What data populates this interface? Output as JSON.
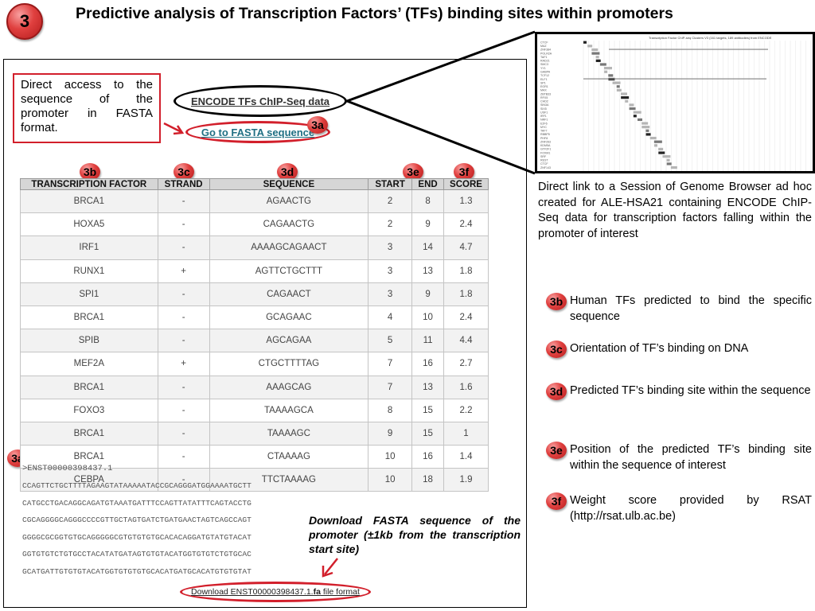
{
  "slide": {
    "number": "3",
    "title": "Predictive analysis of Transcription Factors’ (TFs) binding sites within promoters"
  },
  "direct_access_note": "Direct access to the sequence of the promoter in FASTA format.",
  "encode_link": "ENCODE TFs ChIP-Seq data",
  "fasta_link": "Go to FASTA sequence",
  "badges": {
    "a": "3a",
    "b": "3b",
    "c": "3c",
    "d": "3d",
    "e": "3e",
    "f": "3f"
  },
  "table": {
    "headers": [
      "TRANSCRIPTION FACTOR",
      "STRAND",
      "SEQUENCE",
      "START",
      "END",
      "SCORE"
    ],
    "rows": [
      [
        "BRCA1",
        "-",
        "AGAACTG",
        "2",
        "8",
        "1.3"
      ],
      [
        "HOXA5",
        "-",
        "CAGAACTG",
        "2",
        "9",
        "2.4"
      ],
      [
        "IRF1",
        "-",
        "AAAAGCAGAACT",
        "3",
        "14",
        "4.7"
      ],
      [
        "RUNX1",
        "+",
        "AGTTCTGCTTT",
        "3",
        "13",
        "1.8"
      ],
      [
        "SPI1",
        "-",
        "CAGAACT",
        "3",
        "9",
        "1.8"
      ],
      [
        "BRCA1",
        "-",
        "GCAGAAC",
        "4",
        "10",
        "2.4"
      ],
      [
        "SPIB",
        "-",
        "AGCAGAA",
        "5",
        "11",
        "4.4"
      ],
      [
        "MEF2A",
        "+",
        "CTGCTTTTAG",
        "7",
        "16",
        "2.7"
      ],
      [
        "BRCA1",
        "-",
        "AAAGCAG",
        "7",
        "13",
        "1.6"
      ],
      [
        "FOXO3",
        "-",
        "TAAAAGCA",
        "8",
        "15",
        "2.2"
      ],
      [
        "BRCA1",
        "-",
        "TAAAAGC",
        "9",
        "15",
        "1"
      ],
      [
        "BRCA1",
        "-",
        "CTAAAAG",
        "10",
        "16",
        "1.4"
      ],
      [
        "CEBPA",
        "-",
        "TTCTAAAAG",
        "10",
        "18",
        "1.9"
      ]
    ]
  },
  "fasta": {
    "header": ">ENST00000398437.1",
    "lines": [
      "CCAGTTCTGCTTTTAGAAGTATAAAAATACCGCAGGGATGGAAAATGCTT",
      "CATGCCTGACAGGCAGATGTAAATGATTTCCAGTTATATTTCAGTACCTG",
      "CGCAGGGGCAGGGCCCCGTTGCTAGTGATCTGATGAACTAGTCAGCCAGT",
      "GGGGCGCGGTGTGCAGGGGGCGTGTGTGTGCACACAGGATGTATGTACAT",
      "GGTGTGTCTGTGCCTACATATGATAGTGTGTACATGGTGTGTCTGTGCAC",
      "GCATGATTGTGTGTACATGGTGTGTGTGCACATGATGCACATGTGTGTAT"
    ]
  },
  "download_note": "Download FASTA sequence of the promoter (±1kb from the transcription start site)",
  "download_link": {
    "prefix": "Download ENST00000398437.1.",
    "bold": "fa",
    "suffix": " file format"
  },
  "genome_browser": {
    "header_text": "Transcription Factor ChIP-seq Clusters V3 (161 targets, 189 antibodies) from ENCODE",
    "track_labels": [
      "CTCF",
      "MAZ",
      "ZNF384",
      "POLR2A",
      "TAF1",
      "RAD21",
      "SMC3",
      "YY1",
      "GABPA",
      "TCF12",
      "ELF1",
      "SP1",
      "EGR1",
      "MAX",
      "ZBTB33",
      "RFX5",
      "CHD2",
      "SIN3A",
      "SIX5",
      "USF1",
      "IRF1",
      "NRF1",
      "E2F6",
      "MYC",
      "TAF7",
      "RBBP5",
      "PHF8",
      "ZNF263",
      "KDM5A",
      "GTF2F1",
      "FOXM1",
      "SRF",
      "REST",
      "CTCF",
      "ZNF143"
    ]
  },
  "genome_caption": "Direct link to a Session of Genome Browser ad hoc created for ALE-HSA21 containing ENCODE ChIP-Seq data for transcription factors falling within the promoter of interest",
  "legend": [
    {
      "badge": "3b",
      "text": "Human TFs predicted to bind the specific sequence"
    },
    {
      "badge": "3c",
      "text": "Orientation of TF’s binding on DNA"
    },
    {
      "badge": "3d",
      "text": "Predicted TF’s binding site within the sequence"
    },
    {
      "badge": "3e",
      "text": "Position of the predicted TF’s binding site within the sequence of interest"
    },
    {
      "badge": "3f",
      "text": "Weight score provided by RSAT (http://rsat.ulb.ac.be)"
    }
  ]
}
